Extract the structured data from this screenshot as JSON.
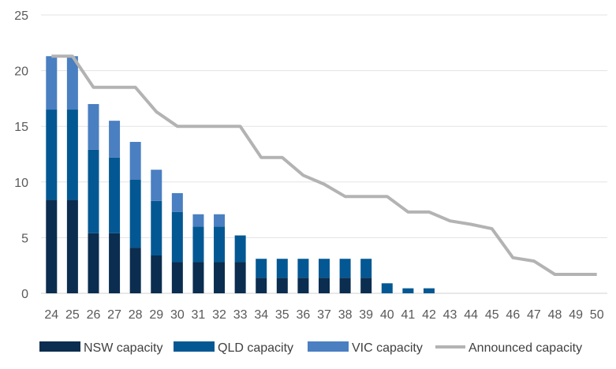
{
  "chart_data": {
    "type": "bar",
    "stacked": true,
    "title": "",
    "xlabel": "",
    "ylabel": "",
    "ylim": [
      0,
      25
    ],
    "yticks": [
      0,
      5,
      10,
      15,
      20,
      25
    ],
    "grid": "horizontal",
    "legend_position": "bottom",
    "categories": [
      "24",
      "25",
      "26",
      "27",
      "28",
      "29",
      "30",
      "31",
      "32",
      "33",
      "34",
      "35",
      "36",
      "37",
      "38",
      "39",
      "40",
      "41",
      "42",
      "43",
      "44",
      "45",
      "46",
      "47",
      "48",
      "49",
      "50"
    ],
    "series": [
      {
        "name": "NSW capacity",
        "type": "bar",
        "color": "#0b2d4f",
        "values": [
          8.4,
          8.4,
          5.4,
          5.4,
          4.1,
          3.4,
          2.8,
          2.8,
          2.8,
          2.8,
          1.4,
          1.4,
          1.4,
          1.4,
          1.4,
          1.4,
          0,
          0,
          0,
          0,
          0,
          0,
          0,
          0,
          0,
          0,
          0
        ]
      },
      {
        "name": "QLD capacity",
        "type": "bar",
        "color": "#035893",
        "values": [
          8.1,
          8.1,
          7.5,
          6.8,
          6.1,
          4.9,
          4.5,
          3.2,
          3.2,
          2.4,
          1.7,
          1.7,
          1.7,
          1.7,
          1.7,
          1.7,
          0.9,
          0.45,
          0.45,
          0,
          0,
          0,
          0,
          0,
          0,
          0,
          0
        ]
      },
      {
        "name": "VIC capacity",
        "type": "bar",
        "color": "#4a7fc1",
        "values": [
          4.8,
          4.8,
          4.1,
          3.3,
          3.4,
          2.8,
          1.7,
          1.1,
          1.1,
          0,
          0,
          0,
          0,
          0,
          0,
          0,
          0,
          0,
          0,
          0,
          0,
          0,
          0,
          0,
          0,
          0,
          0
        ]
      },
      {
        "name": "Announced capacity",
        "type": "line",
        "color": "#b3b3b3",
        "values": [
          21.3,
          21.3,
          18.5,
          18.5,
          18.5,
          16.3,
          15.0,
          15.0,
          15.0,
          15.0,
          12.2,
          12.2,
          10.6,
          9.8,
          8.7,
          8.7,
          8.7,
          7.3,
          7.3,
          6.5,
          6.2,
          5.8,
          3.2,
          2.9,
          1.7,
          1.7,
          1.7
        ]
      }
    ]
  }
}
